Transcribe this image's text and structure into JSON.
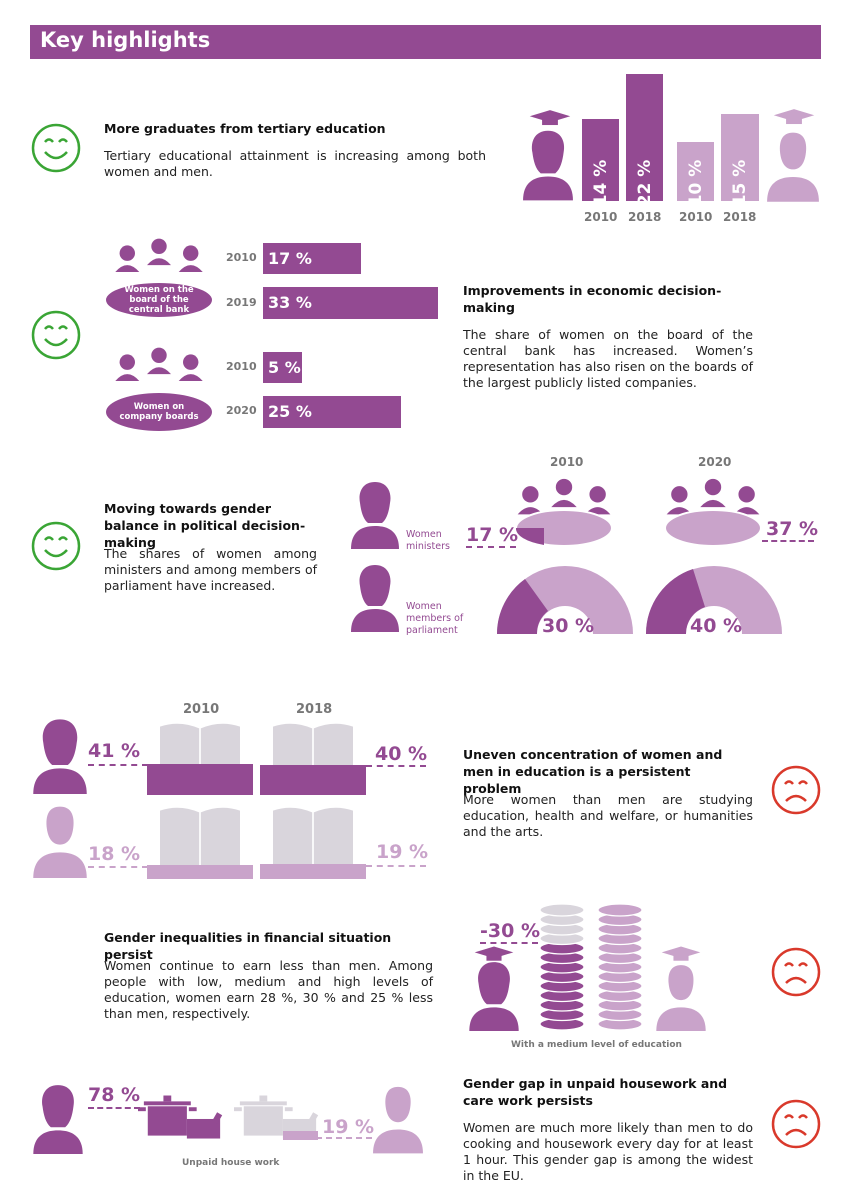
{
  "header": {
    "title": "Key highlights"
  },
  "colors": {
    "accent": "#934a92",
    "light": "#c9a3ca",
    "good": "#3aa535",
    "bad": "#d9392b",
    "grey": "#d9d5dc"
  },
  "s1": {
    "heading": "More graduates from tertiary education",
    "text": "Tertiary educational attainment is increasing among both women and men.",
    "bars": [
      {
        "label": "14 %",
        "year": "2010"
      },
      {
        "label": "22 %",
        "year": "2018"
      },
      {
        "label": "10 %",
        "year": "2010"
      },
      {
        "label": "15 %",
        "year": "2018"
      }
    ]
  },
  "s2": {
    "heading": "Improvements in economic decision-making",
    "text": "The share of women on the board of the central bank has increased. Women’s representation has also risen on the boards of the largest publicly listed companies.",
    "group1_label": "Women on the board of the central bank",
    "group2_label": "Women on company boards",
    "rows": [
      {
        "year": "2010",
        "value": "17 %"
      },
      {
        "year": "2019",
        "value": "33 %"
      },
      {
        "year": "2010",
        "value": "5 %"
      },
      {
        "year": "2020",
        "value": "25 %"
      }
    ]
  },
  "s3": {
    "heading": "Moving towards gender balance in political decision-making",
    "text": "The shares of women among ministers and among members of parliament have increased.",
    "year1": "2010",
    "year2": "2020",
    "ministers_label": "Women ministers",
    "mps_label": "Women members of parliament",
    "ministers_2010": "17 %",
    "ministers_2020": "37 %",
    "mps_2010": "30 %",
    "mps_2020": "40 %"
  },
  "s4": {
    "heading": "Uneven concentration of women and men in education is a persistent problem",
    "text": "More women than men are studying education, health and welfare, or humanities and the arts.",
    "year1": "2010",
    "year2": "2018",
    "women_2010": "41 %",
    "women_2018": "40 %",
    "men_2010": "18 %",
    "men_2018": "19 %"
  },
  "s5": {
    "heading": "Gender inequalities in financial situation persist",
    "text": "Women continue to earn less than men. Among people with low, medium and high levels of education, women earn 28 %, 30 % and 25 % less than men, respectively.",
    "gap": "-30 %",
    "caption": "With a medium level of education"
  },
  "s6": {
    "heading": "Gender gap in unpaid housework and care work persists",
    "text": "Women are much more likely than men to do cooking and housework every day for at least 1 hour. This gender gap is among the widest in the EU.",
    "women": "78 %",
    "men": "19 %",
    "caption": "Unpaid house work"
  }
}
